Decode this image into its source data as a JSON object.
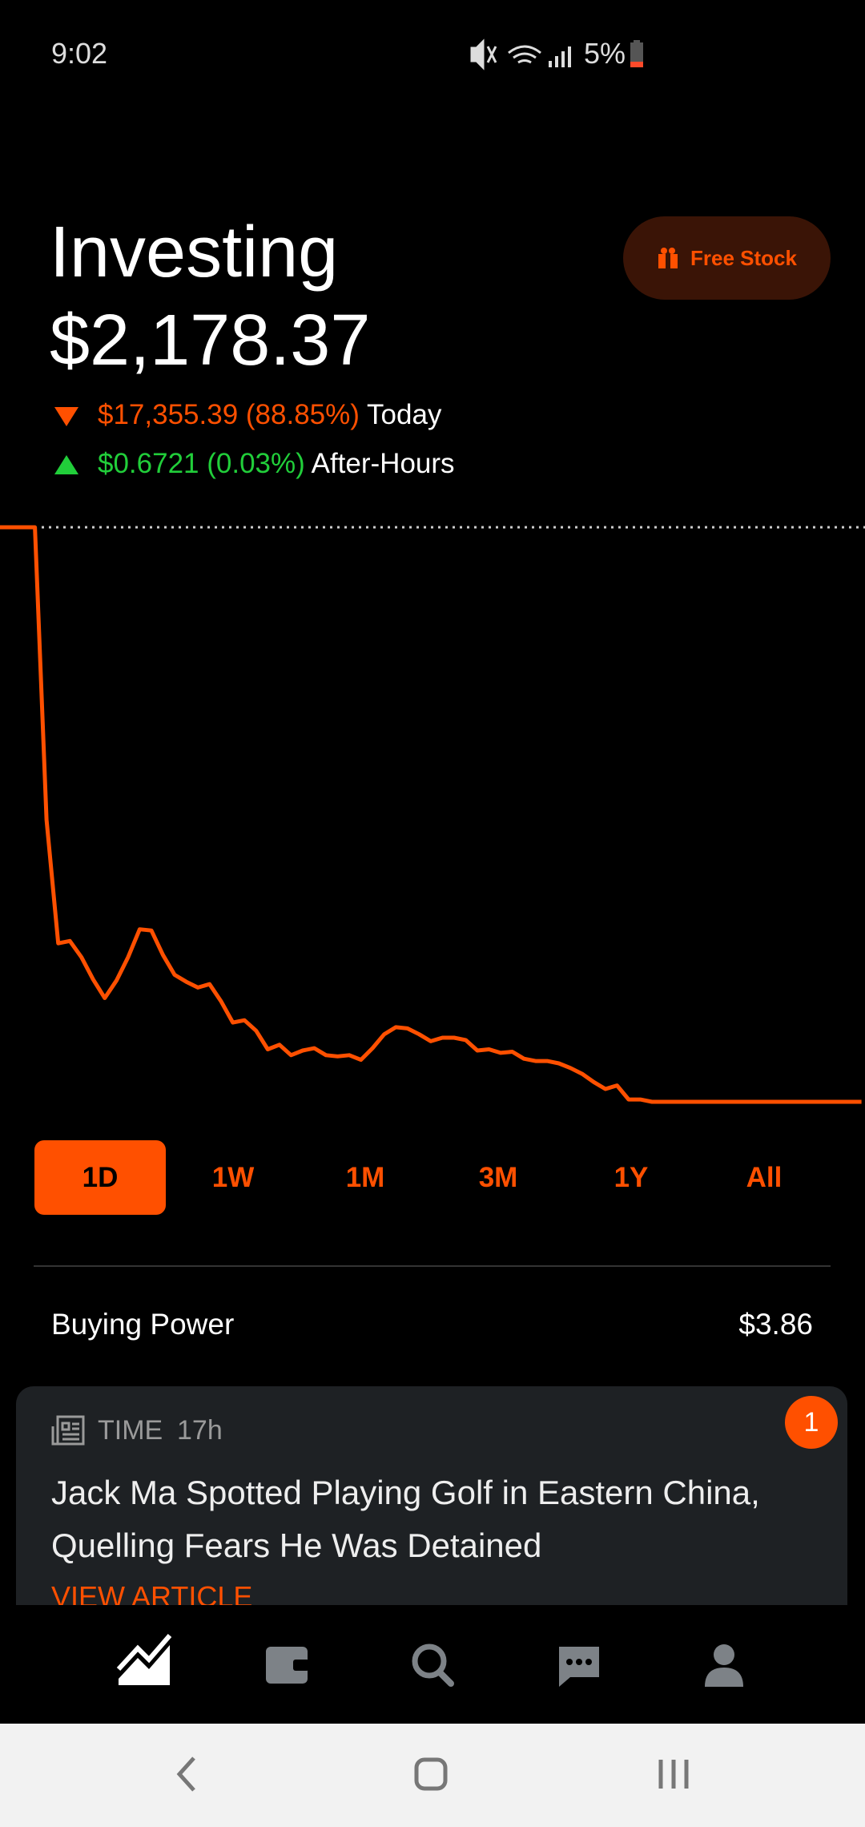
{
  "status_bar": {
    "time": "9:02",
    "battery": "5%"
  },
  "header": {
    "title": "Investing",
    "button": "Free Stock"
  },
  "portfolio": {
    "value": "$2,178.37",
    "change_today": {
      "amount": "$17,355.39 (88.85%)",
      "label": "Today"
    },
    "after_hours": {
      "amount": "$0.6721 (0.03%)",
      "label": "After-Hours"
    }
  },
  "chart": {
    "type": "line",
    "color": "#ff5000",
    "previous_close": 19533.76,
    "values": [
      19533.76,
      19533.76,
      19533.76,
      19533.76,
      10698,
      6966,
      7036,
      6544,
      5875,
      5312,
      5840,
      6544,
      7389,
      7354,
      6614,
      6016,
      5805,
      5629,
      5734,
      5206,
      4573,
      4643,
      4326,
      3763,
      3903,
      3587,
      3728,
      3798,
      3587,
      3552,
      3587,
      3446,
      3798,
      4220,
      4432,
      4396,
      4220,
      4009,
      4115,
      4115,
      4045,
      3728,
      3763,
      3657,
      3692,
      3481,
      3411,
      3411,
      3340,
      3199,
      3023,
      2777,
      2566,
      2671,
      2249,
      2249,
      2178.37,
      2178.37,
      2178.37,
      2178.37,
      2178.37,
      2178.37,
      2178.37,
      2178.37,
      2178.37,
      2178.37,
      2178.37,
      2178.37,
      2178.37,
      2178.37,
      2178.37,
      2178.37,
      2178.37,
      2178.37,
      2178.37
    ]
  },
  "range_buttons": {
    "labels": [
      "1D",
      "1W",
      "1M",
      "3M",
      "1Y",
      "All"
    ],
    "selected_index": 0
  },
  "buying_power": {
    "label": "Buying Power",
    "value": "$3.86"
  },
  "news": {
    "source": "TIME",
    "age": "17h",
    "badge": "1",
    "headline": "Jack Ma Spotted Playing Golf in Eastern China, Quelling Fears He Was Detained",
    "action": "VIEW ARTICLE"
  }
}
